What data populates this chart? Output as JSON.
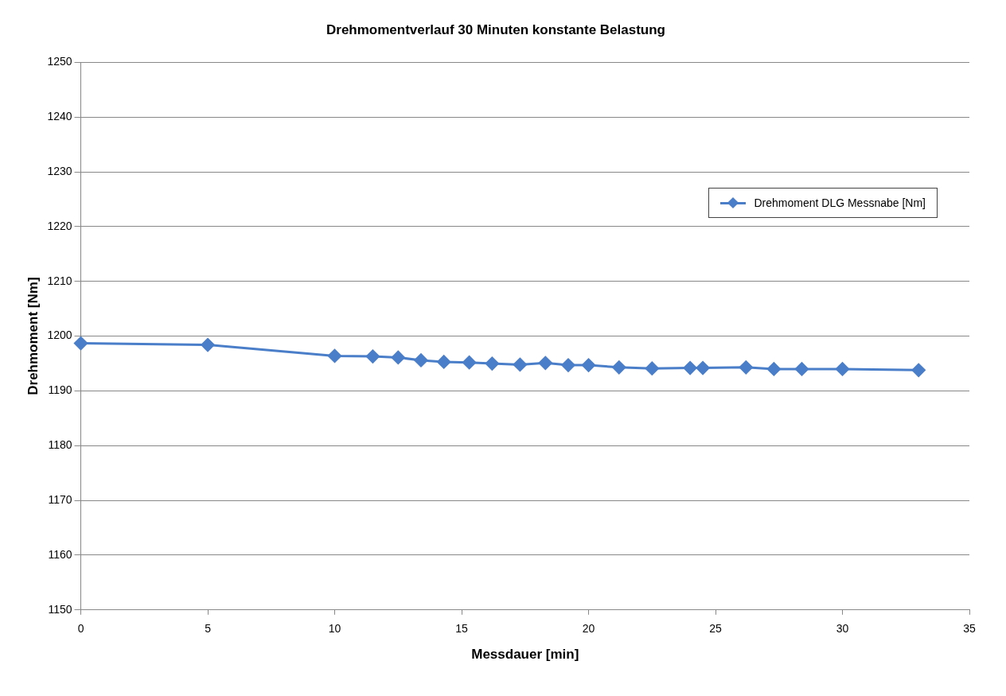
{
  "chart_data": {
    "type": "line",
    "title": "Drehmomentverlauf 30 Minuten konstante Belastung",
    "xlabel": "Messdauer [min]",
    "ylabel": "Drehmoment [Nm]",
    "x": [
      0,
      5,
      10,
      11.5,
      12.5,
      13.4,
      14.3,
      15.3,
      16.2,
      17.3,
      18.3,
      19.2,
      20,
      21.2,
      22.5,
      24,
      24.5,
      26.2,
      27.3,
      28.4,
      30,
      33
    ],
    "series": [
      {
        "name": "Drehmoment DLG Messnabe [Nm]",
        "color": "#4a7ec8",
        "values": [
          1198.7,
          1198.4,
          1196.4,
          1196.3,
          1196.1,
          1195.6,
          1195.3,
          1195.2,
          1195,
          1194.8,
          1195.1,
          1194.7,
          1194.7,
          1194.3,
          1194.1,
          1194.2,
          1194.2,
          1194.3,
          1194,
          1194,
          1194,
          1193.8
        ]
      }
    ],
    "xlim": [
      0,
      35
    ],
    "xticks": [
      0,
      5,
      10,
      15,
      20,
      25,
      30,
      35
    ],
    "ylim": [
      1150,
      1250
    ],
    "yticks": [
      1150,
      1160,
      1170,
      1180,
      1190,
      1200,
      1210,
      1220,
      1230,
      1240,
      1250
    ],
    "grid": "y",
    "legend": "top right",
    "marker": "diamond",
    "line_style": "solid"
  }
}
